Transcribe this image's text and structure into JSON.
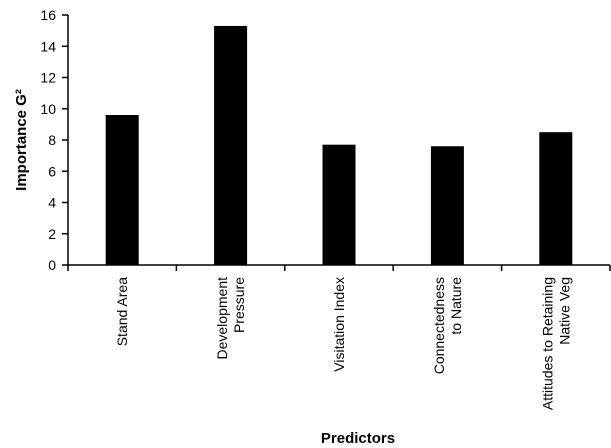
{
  "chart_data": {
    "type": "bar",
    "categories": [
      [
        "Stand Area"
      ],
      [
        "Development",
        "Pressure"
      ],
      [
        "Visitation Index"
      ],
      [
        "Connectedness",
        "to Nature"
      ],
      [
        "Attitudes to Retaining",
        "Native Veg"
      ]
    ],
    "values": [
      9.6,
      15.3,
      7.7,
      7.6,
      8.5
    ],
    "ylim": [
      0,
      16
    ],
    "yticks": [
      0,
      2,
      4,
      6,
      8,
      10,
      12,
      14,
      16
    ],
    "xlabel": "Predictors",
    "ylabel": "Importance G²",
    "grid": false,
    "bar_color": "#000000"
  }
}
